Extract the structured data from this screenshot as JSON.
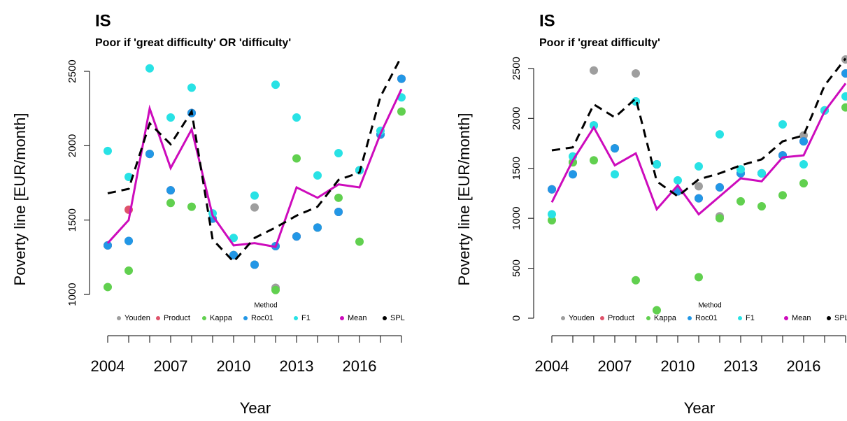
{
  "chart_data": [
    {
      "type": "line",
      "title": "IS",
      "subtitle": "Poor if 'great difficulty' OR 'difficulty'",
      "x_label": "Year",
      "y_label": "Poverty line [EUR/month]",
      "legend_title": "Method",
      "x": [
        2004,
        2005,
        2006,
        2007,
        2008,
        2009,
        2010,
        2011,
        2012,
        2013,
        2014,
        2015,
        2016,
        2017,
        2018
      ],
      "xlim": [
        2003.5,
        2018.5
      ],
      "xticks": [
        2004,
        2007,
        2010,
        2013,
        2016
      ],
      "xminor_ticks": [
        2004,
        2005,
        2006,
        2007,
        2008,
        2009,
        2010,
        2011,
        2012,
        2013,
        2014,
        2015,
        2016,
        2017,
        2018
      ],
      "ylim": [
        723,
        2580
      ],
      "yticks": [
        1000,
        1500,
        2000,
        2500
      ],
      "series": [
        {
          "name": "Youden",
          "color": "#9e9e9e",
          "mode": "points",
          "values": [
            1330,
            1360,
            1945,
            1700,
            2220,
            1510,
            1265,
            1585,
            1045,
            1390,
            1450,
            1555,
            1835,
            2075,
            2450
          ]
        },
        {
          "name": "Product",
          "color": "#df536b",
          "mode": "points",
          "values": [
            1330,
            1570,
            1945,
            1700,
            2220,
            1510,
            1265,
            1200,
            1325,
            1390,
            1450,
            1555,
            1835,
            2075,
            2450
          ]
        },
        {
          "name": "Kappa",
          "color": "#61d04f",
          "mode": "points",
          "values": [
            1050,
            1160,
            1945,
            1615,
            1590,
            1510,
            1265,
            1200,
            1030,
            1915,
            1450,
            1650,
            1355,
            2075,
            2230
          ]
        },
        {
          "name": "Roc01",
          "color": "#2297e6",
          "mode": "points",
          "values": [
            1330,
            1360,
            1945,
            1700,
            2220,
            1510,
            1265,
            1200,
            1325,
            1390,
            1450,
            1555,
            1835,
            2075,
            2450
          ]
        },
        {
          "name": "F1",
          "color": "#28e2e5",
          "mode": "points",
          "values": [
            1965,
            1790,
            2520,
            2190,
            2390,
            1545,
            1380,
            1665,
            2410,
            2190,
            1800,
            1950,
            1835,
            2100,
            2325
          ]
        },
        {
          "name": "Mean",
          "color": "#cd0bbc",
          "mode": "line",
          "values": [
            1345,
            1500,
            2250,
            1850,
            2110,
            1530,
            1330,
            1345,
            1320,
            1720,
            1650,
            1740,
            1720,
            2080,
            2380
          ]
        },
        {
          "name": "SPL",
          "color": "#000000",
          "mode": "dashed",
          "values": [
            1680,
            1710,
            2150,
            2010,
            2230,
            1370,
            1220,
            1380,
            1450,
            1530,
            1590,
            1770,
            1820,
            2330,
            2600
          ]
        }
      ]
    },
    {
      "type": "line",
      "title": "IS",
      "subtitle": "Poor if 'great difficulty'",
      "x_label": "Year",
      "y_label": "Poverty line [EUR/month]",
      "legend_title": "Method",
      "x": [
        2004,
        2005,
        2006,
        2007,
        2008,
        2009,
        2010,
        2011,
        2012,
        2013,
        2014,
        2015,
        2016,
        2017,
        2018
      ],
      "xlim": [
        2003.5,
        2018.5
      ],
      "xticks": [
        2004,
        2007,
        2010,
        2013,
        2016
      ],
      "xminor_ticks": [
        2004,
        2005,
        2006,
        2007,
        2008,
        2009,
        2010,
        2011,
        2012,
        2013,
        2014,
        2015,
        2016,
        2017,
        2018
      ],
      "ylim": [
        -175,
        2590
      ],
      "yticks": [
        0,
        500,
        1000,
        1500,
        2000,
        2500
      ],
      "series": [
        {
          "name": "Youden",
          "color": "#9e9e9e",
          "mode": "points",
          "values": [
            1290,
            1440,
            2480,
            1700,
            2450,
            1540,
            1270,
            1320,
            1020,
            1450,
            1450,
            1630,
            1830,
            2080,
            2590
          ]
        },
        {
          "name": "Product",
          "color": "#df536b",
          "mode": "points",
          "values": [
            1290,
            1560,
            1930,
            1700,
            2170,
            1540,
            1270,
            1200,
            1310,
            1450,
            1450,
            1630,
            1770,
            2080,
            2450
          ]
        },
        {
          "name": "Kappa",
          "color": "#61d04f",
          "mode": "points",
          "values": [
            980,
            1560,
            1580,
            1700,
            380,
            80,
            1270,
            410,
            1000,
            1170,
            1120,
            1230,
            1350,
            2080,
            2110
          ]
        },
        {
          "name": "Roc01",
          "color": "#2297e6",
          "mode": "points",
          "values": [
            1290,
            1440,
            1930,
            1700,
            2170,
            1540,
            1270,
            1200,
            1310,
            1450,
            1450,
            1630,
            1770,
            2080,
            2450
          ]
        },
        {
          "name": "F1",
          "color": "#28e2e5",
          "mode": "points",
          "values": [
            1040,
            1620,
            1930,
            1440,
            2170,
            1540,
            1380,
            1520,
            1840,
            1490,
            1450,
            1940,
            1540,
            2080,
            2220
          ]
        },
        {
          "name": "Mean",
          "color": "#cd0bbc",
          "mode": "line",
          "values": [
            1160,
            1580,
            1910,
            1530,
            1650,
            1090,
            1330,
            1040,
            1220,
            1400,
            1370,
            1610,
            1630,
            2070,
            2350
          ]
        },
        {
          "name": "SPL",
          "color": "#000000",
          "mode": "dashed",
          "values": [
            1680,
            1710,
            2140,
            2010,
            2200,
            1370,
            1220,
            1390,
            1450,
            1530,
            1590,
            1770,
            1830,
            2330,
            2600
          ]
        }
      ]
    }
  ]
}
